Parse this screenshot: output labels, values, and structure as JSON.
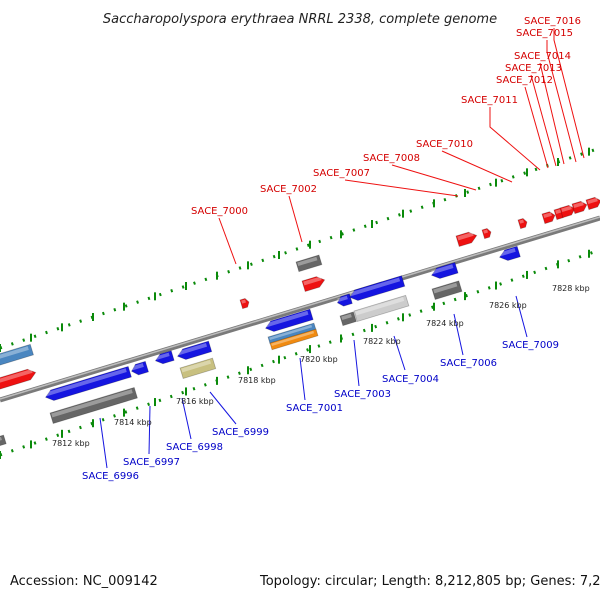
{
  "title": "Saccharopolyspora erythraea NRRL 2338, complete genome",
  "accession": "Accession: NC_009142",
  "topology": "Topology: circular; Length: 8,212,805 bp; Genes: 7,259",
  "colors": {
    "forward_gene": "#ee1111",
    "reverse_gene": "#1515e0",
    "dark_feature": "#666666",
    "light_feature": "#cccccc",
    "olive_feature": "#c8c080",
    "orange_feature": "#f08a10",
    "steel_feature": "#4a86c0",
    "ruler_green": "#0a8a0a",
    "backbone": "#888888"
  },
  "kbp_labels": [
    "7812 kbp",
    "7814 kbp",
    "7816 kbp",
    "7818 kbp",
    "7820 kbp",
    "7822 kbp",
    "7824 kbp",
    "7826 kbp",
    "7828 kbp"
  ],
  "top_labels": [
    "SACE_7000",
    "SACE_7002",
    "SACE_7007",
    "SACE_7008",
    "SACE_7010",
    "SACE_7011",
    "SACE_7012",
    "SACE_7013",
    "SACE_7014",
    "SACE_7015",
    "SACE_7016"
  ],
  "bottom_labels": [
    "SACE_6996",
    "SACE_6997",
    "SACE_6998",
    "SACE_6999",
    "SACE_7001",
    "SACE_7003",
    "SACE_7004",
    "SACE_7006",
    "SACE_7009"
  ]
}
